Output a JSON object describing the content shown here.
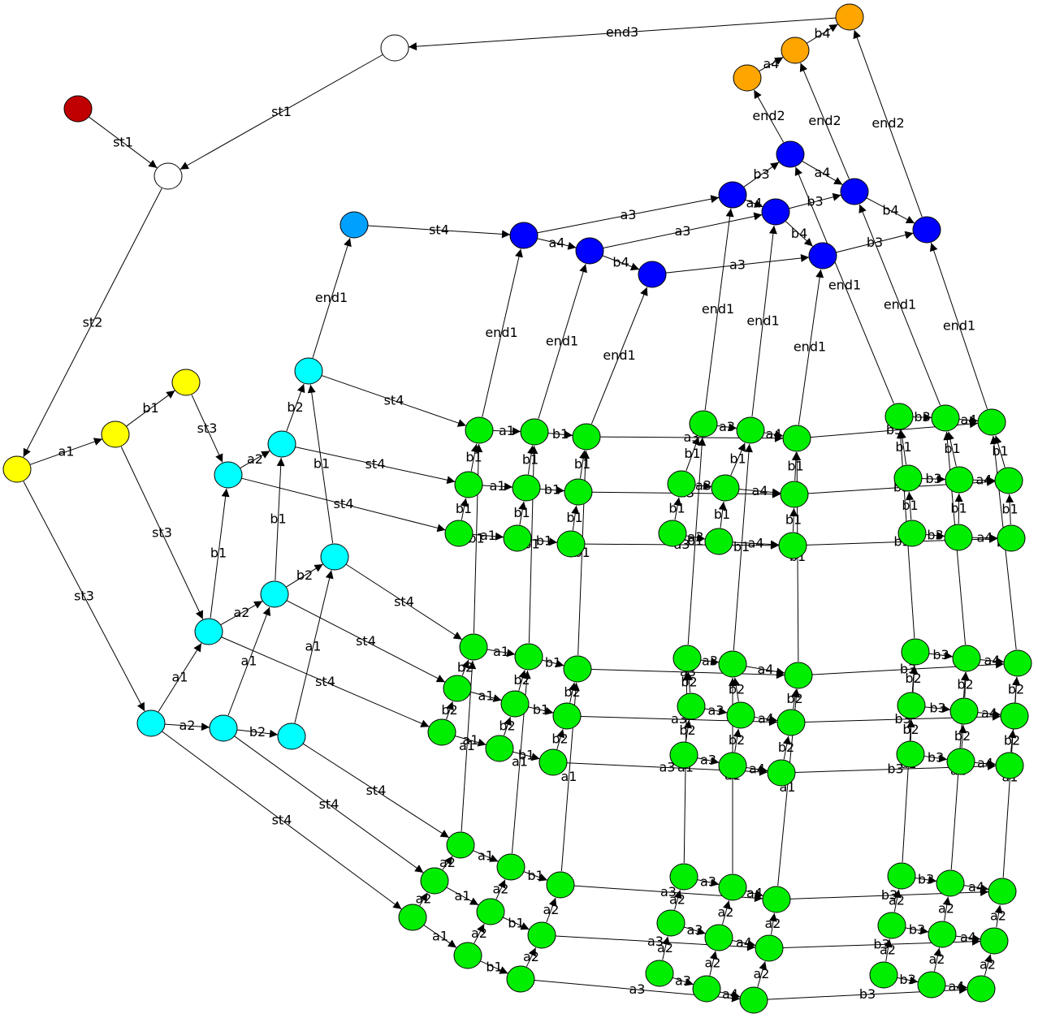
{
  "colors": {
    "red": "#c00000",
    "white": "#ffffff",
    "yellow": "#ffff00",
    "cyan": "#00ffff",
    "skyblue": "#00a0ff",
    "blue": "#0000ff",
    "orange": "#ffa500",
    "green": "#00ee00"
  },
  "nodes": [
    {
      "id": "start",
      "color": "red"
    },
    {
      "id": "w1",
      "color": "white"
    },
    {
      "id": "w2",
      "color": "white"
    },
    {
      "id": "y1",
      "color": "yellow"
    },
    {
      "id": "y2",
      "color": "yellow"
    },
    {
      "id": "y3",
      "color": "yellow"
    },
    {
      "id": "c1",
      "color": "cyan"
    },
    {
      "id": "c2",
      "color": "cyan"
    },
    {
      "id": "c3",
      "color": "cyan"
    },
    {
      "id": "c4",
      "color": "cyan"
    },
    {
      "id": "c5",
      "color": "cyan"
    },
    {
      "id": "c6",
      "color": "cyan"
    },
    {
      "id": "c7",
      "color": "cyan"
    },
    {
      "id": "c8",
      "color": "cyan"
    },
    {
      "id": "c9",
      "color": "cyan"
    },
    {
      "id": "c10",
      "color": "cyan"
    },
    {
      "id": "sb",
      "color": "skyblue"
    },
    {
      "id": "b1",
      "color": "blue"
    },
    {
      "id": "b2",
      "color": "blue"
    },
    {
      "id": "b3",
      "color": "blue"
    },
    {
      "id": "b4",
      "color": "blue"
    },
    {
      "id": "b5",
      "color": "blue"
    },
    {
      "id": "b6",
      "color": "blue"
    },
    {
      "id": "b7",
      "color": "blue"
    },
    {
      "id": "b8",
      "color": "blue"
    },
    {
      "id": "b9",
      "color": "blue"
    },
    {
      "id": "o1",
      "color": "orange"
    },
    {
      "id": "o2",
      "color": "orange"
    },
    {
      "id": "o3",
      "color": "orange"
    }
  ],
  "edges": [
    {
      "from": "start",
      "to": "w1",
      "label": "st1"
    },
    {
      "from": "w2",
      "to": "w1",
      "label": "st1"
    },
    {
      "from": "o3",
      "to": "w2",
      "label": "end3"
    },
    {
      "from": "w1",
      "to": "y1",
      "label": "st2"
    },
    {
      "from": "y1",
      "to": "y2",
      "label": "a1"
    },
    {
      "from": "y2",
      "to": "y3",
      "label": "b1"
    },
    {
      "from": "y3",
      "to": "c2",
      "label": "st3"
    },
    {
      "from": "y2",
      "to": "c4",
      "label": "st3"
    },
    {
      "from": "y1",
      "to": "c7",
      "label": "st3"
    },
    {
      "from": "c7",
      "to": "c8",
      "label": "a2"
    },
    {
      "from": "c8",
      "to": "c9",
      "label": "b2"
    },
    {
      "from": "c7",
      "to": "c4",
      "label": "a1"
    },
    {
      "from": "c8",
      "to": "c5",
      "label": "a1"
    },
    {
      "from": "c9",
      "to": "c6",
      "label": "a1"
    },
    {
      "from": "c4",
      "to": "c5",
      "label": "a2"
    },
    {
      "from": "c5",
      "to": "c6",
      "label": "b2"
    },
    {
      "from": "c4",
      "to": "c2",
      "label": "b1"
    },
    {
      "from": "c5",
      "to": "c3",
      "label": "b1"
    },
    {
      "from": "c6",
      "to": "c1",
      "label": "b1"
    },
    {
      "from": "c2",
      "to": "c3",
      "label": "a2"
    },
    {
      "from": "c3",
      "to": "c1",
      "label": "b2"
    },
    {
      "from": "c1",
      "to": "sb",
      "label": "end1"
    },
    {
      "from": "sb",
      "to": "b1",
      "label": "st4"
    },
    {
      "from": "b1",
      "to": "b2",
      "label": "a4"
    },
    {
      "from": "b2",
      "to": "b3",
      "label": "b4"
    },
    {
      "from": "b1",
      "to": "b4",
      "label": "a3"
    },
    {
      "from": "b2",
      "to": "b5",
      "label": "a3"
    },
    {
      "from": "b3",
      "to": "b7",
      "label": "a3"
    },
    {
      "from": "b4",
      "to": "b5",
      "label": "a4"
    },
    {
      "from": "b4",
      "to": "b6",
      "label": "b3"
    },
    {
      "from": "b5",
      "to": "b8",
      "label": "b3"
    },
    {
      "from": "b5",
      "to": "b7",
      "label": "b4"
    },
    {
      "from": "b6",
      "to": "b8",
      "label": "a4"
    },
    {
      "from": "b8",
      "to": "b9",
      "label": "b4"
    },
    {
      "from": "b7",
      "to": "b9",
      "label": "b3"
    },
    {
      "from": "b6",
      "to": "o1",
      "label": "end2"
    },
    {
      "from": "b8",
      "to": "o2",
      "label": "end2"
    },
    {
      "from": "b9",
      "to": "o3",
      "label": "end2"
    },
    {
      "from": "o1",
      "to": "o2",
      "label": "a4"
    },
    {
      "from": "o2",
      "to": "o3",
      "label": "b4"
    },
    {
      "from": "c1",
      "to": "g1",
      "label": "st4"
    },
    {
      "from": "c3",
      "to": "g10",
      "label": "st4"
    },
    {
      "from": "c2",
      "to": "g19",
      "label": "st4"
    },
    {
      "from": "c6",
      "to": "g28",
      "label": "st4"
    },
    {
      "from": "c5",
      "to": "g37",
      "label": "st4"
    },
    {
      "from": "c4",
      "to": "g46",
      "label": "st4"
    },
    {
      "from": "c9",
      "to": "g55",
      "label": "st4"
    },
    {
      "from": "c8",
      "to": "g64",
      "label": "st4"
    },
    {
      "from": "c7",
      "to": "g73",
      "label": "st4"
    },
    {
      "from": "g1",
      "to": "b1",
      "label": "end1"
    },
    {
      "from": "g2",
      "to": "b2",
      "label": "end1"
    },
    {
      "from": "g3",
      "to": "b3",
      "label": "end1"
    },
    {
      "from": "g4",
      "to": "b4",
      "label": "end1"
    },
    {
      "from": "g5",
      "to": "b5",
      "label": "end1"
    },
    {
      "from": "g6",
      "to": "b7",
      "label": "end1"
    },
    {
      "from": "g7",
      "to": "b6",
      "label": "end1"
    },
    {
      "from": "g8",
      "to": "b8",
      "label": "end1"
    },
    {
      "from": "g9",
      "to": "b9",
      "label": "end1"
    }
  ],
  "green_layers": [
    {
      "x": [
        590,
        658,
        722,
        866,
        924,
        981,
        1107,
        1164,
        1221
      ],
      "y": [
        530,
        532,
        538,
        522,
        530,
        540,
        513,
        515,
        520
      ]
    },
    {
      "x": [
        577,
        648,
        712,
        839,
        893,
        978,
        1118,
        1181,
        1242
      ],
      "y": [
        597,
        601,
        606,
        596,
        601,
        609,
        589,
        591,
        592
      ]
    },
    {
      "x": [
        565,
        637,
        703,
        828,
        885,
        976,
        1123,
        1180,
        1245
      ],
      "y": [
        657,
        663,
        670,
        657,
        667,
        672,
        657,
        662,
        663
      ]
    },
    {
      "x": [
        583,
        651,
        711,
        846,
        902,
        983,
        1127,
        1190,
        1253
      ],
      "y": [
        797,
        809,
        824,
        811,
        818,
        832,
        803,
        811,
        817
      ]
    },
    {
      "x": [
        563,
        634,
        698,
        851,
        912,
        974,
        1122,
        1187,
        1249
      ],
      "y": [
        848,
        867,
        882,
        870,
        881,
        890,
        869,
        876,
        882
      ]
    },
    {
      "x": [
        544,
        615,
        681,
        842,
        902,
        962,
        1121,
        1183,
        1243
      ],
      "y": [
        902,
        922,
        939,
        930,
        943,
        952,
        929,
        938,
        943
      ]
    },
    {
      "x": [
        567,
        629,
        690,
        842,
        902,
        956,
        1110,
        1170,
        1234
      ],
      "y": [
        1041,
        1068,
        1090,
        1080,
        1093,
        1108,
        1079,
        1088,
        1098
      ]
    },
    {
      "x": [
        535,
        604,
        667,
        826,
        885,
        947,
        1098,
        1160,
        1224
      ],
      "y": [
        1085,
        1123,
        1152,
        1137,
        1155,
        1168,
        1140,
        1151,
        1159
      ]
    },
    {
      "x": [
        508,
        576,
        641,
        812,
        870,
        928,
        1088,
        1147,
        1208
      ],
      "y": [
        1130,
        1177,
        1206,
        1199,
        1218,
        1232,
        1201,
        1213,
        1218
      ]
    }
  ],
  "green_col_labels": [
    "a1",
    "b1",
    "a3",
    "a3",
    "a4",
    "b3",
    "b3",
    "a4",
    "b4"
  ],
  "green_row_labels": [
    "b2",
    "b1",
    "b1",
    "b1",
    "b2",
    "b2",
    "a1",
    "a2",
    "a2"
  ]
}
